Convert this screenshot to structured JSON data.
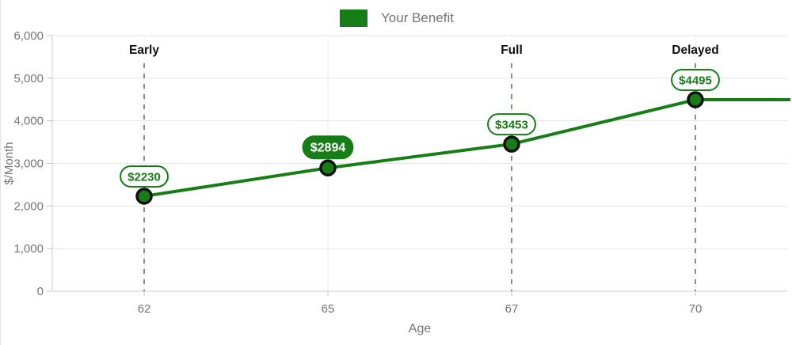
{
  "legend": {
    "label": "Your Benefit",
    "swatch_color": "#177d17"
  },
  "chart_data": {
    "type": "line",
    "categories": [
      "62",
      "65",
      "67",
      "70"
    ],
    "series": [
      {
        "name": "Your Benefit",
        "values": [
          2230,
          2894,
          3453,
          4495
        ]
      }
    ],
    "point_labels": [
      "$2230",
      "$2894",
      "$3453",
      "$4495"
    ],
    "highlighted_point_index": 1,
    "milestones": [
      {
        "category": "62",
        "label": "Early"
      },
      {
        "category": "67",
        "label": "Full"
      },
      {
        "category": "70",
        "label": "Delayed"
      }
    ],
    "dashed_line_categories": [
      "62",
      "67",
      "70"
    ],
    "xlabel": "Age",
    "ylabel": "$/Month",
    "ylim": [
      0,
      6000
    ],
    "y_ticks": [
      0,
      1000,
      2000,
      3000,
      4000,
      5000,
      6000
    ],
    "y_tick_labels": [
      "0",
      "1,000",
      "2,000",
      "3,000",
      "4,000",
      "5,000",
      "6,000"
    ],
    "line_extends_right": true,
    "grid": true,
    "legend_position": "top",
    "colors": {
      "line": "#177d17",
      "point_fill": "#177d17",
      "point_border": "#111111",
      "grid": "#e5e5e5",
      "axis": "#cccccc",
      "tick": "#c4c4c4",
      "dashed_line": "#8c8c8c",
      "tick_label": "#757575",
      "axis_title": "#757575",
      "milestone_text": "#111111",
      "pill_bg": "#ffffff",
      "pill_border": "#177d17",
      "pill_text": "#177d17",
      "active_pill_bg": "#177d17",
      "active_pill_text": "#ffffff"
    }
  }
}
